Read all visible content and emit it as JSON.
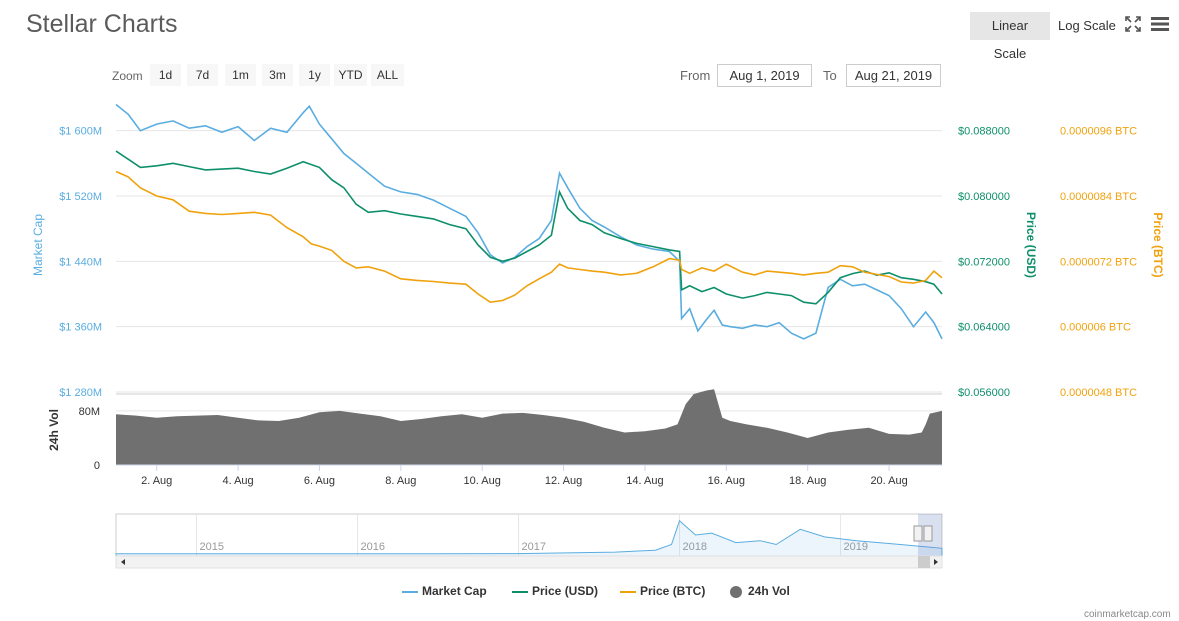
{
  "header": {
    "title": "Stellar Charts",
    "linear_scale": "Linear Scale",
    "log_scale": "Log Scale",
    "fullscreen_icon": "fullscreen-icon",
    "menu_icon": "hamburger-menu-icon"
  },
  "zoom": {
    "label": "Zoom",
    "buttons": [
      "1d",
      "7d",
      "1m",
      "3m",
      "1y",
      "YTD",
      "ALL"
    ]
  },
  "range": {
    "from_label": "From",
    "from_value": "Aug 1, 2019",
    "to_label": "To",
    "to_value": "Aug 21, 2019"
  },
  "colors": {
    "market_cap": "#5aade0",
    "price_usd": "#0d8f6a",
    "price_btc": "#f0a20e",
    "volume": "#707070"
  },
  "credit": "coinmarketcap.com",
  "chart_data": {
    "type": "line",
    "x_tick_labels": [
      "2. Aug",
      "4. Aug",
      "6. Aug",
      "8. Aug",
      "10. Aug",
      "12. Aug",
      "14. Aug",
      "16. Aug",
      "18. Aug",
      "20. Aug"
    ],
    "x_range_days": [
      1.0,
      21.3
    ],
    "axes": {
      "market_cap": {
        "label": "Market Cap",
        "ticks": [
          "$1 600M",
          "$1 520M",
          "$1 440M",
          "$1 360M",
          "$1 280M"
        ],
        "tick_values": [
          1600,
          1520,
          1440,
          1360,
          1280
        ],
        "range": [
          1280,
          1640
        ]
      },
      "price_usd": {
        "label": "Price (USD)",
        "ticks": [
          "$0.088000",
          "$0.080000",
          "$0.072000",
          "$0.064000",
          "$0.056000"
        ],
        "tick_values": [
          0.088,
          0.08,
          0.072,
          0.064,
          0.056
        ],
        "range": [
          0.056,
          0.092
        ]
      },
      "price_btc": {
        "label": "Price (BTC)",
        "ticks": [
          "0.0000096 BTC",
          "0.0000084 BTC",
          "0.0000072 BTC",
          "0.000006 BTC",
          "0.0000048 BTC"
        ],
        "tick_values": [
          9.6e-06,
          8.4e-06,
          7.2e-06,
          6e-06,
          4.8e-06
        ],
        "range": [
          4.8e-06,
          1.02e-05
        ]
      },
      "volume": {
        "label": "24h Vol",
        "ticks": [
          "80M",
          "0"
        ],
        "tick_values": [
          80,
          0
        ],
        "range": [
          0,
          105
        ]
      }
    },
    "series": [
      {
        "name": "Market Cap",
        "axis": "market_cap",
        "x": [
          1.0,
          1.3,
          1.6,
          2.0,
          2.4,
          2.8,
          3.2,
          3.6,
          4.0,
          4.4,
          4.8,
          5.2,
          5.6,
          5.75,
          6.0,
          6.3,
          6.6,
          6.9,
          7.2,
          7.6,
          8.0,
          8.4,
          8.8,
          9.2,
          9.6,
          9.9,
          10.2,
          10.5,
          10.8,
          11.1,
          11.4,
          11.7,
          11.9,
          12.1,
          12.4,
          12.7,
          13.0,
          13.4,
          13.8,
          14.2,
          14.6,
          14.85,
          14.9,
          15.1,
          15.3,
          15.5,
          15.7,
          15.9,
          16.1,
          16.4,
          16.7,
          17.0,
          17.3,
          17.6,
          17.9,
          18.2,
          18.5,
          18.8,
          19.1,
          19.4,
          19.7,
          20.0,
          20.3,
          20.6,
          20.9,
          21.1,
          21.3
        ],
        "values": [
          1632,
          1620,
          1600,
          1608,
          1612,
          1603,
          1606,
          1598,
          1605,
          1588,
          1603,
          1598,
          1622,
          1630,
          1608,
          1590,
          1572,
          1560,
          1548,
          1532,
          1525,
          1522,
          1515,
          1505,
          1495,
          1475,
          1448,
          1438,
          1445,
          1458,
          1468,
          1490,
          1548,
          1530,
          1505,
          1490,
          1482,
          1470,
          1460,
          1455,
          1452,
          1440,
          1370,
          1382,
          1355,
          1368,
          1380,
          1362,
          1360,
          1358,
          1362,
          1360,
          1365,
          1352,
          1345,
          1352,
          1408,
          1418,
          1410,
          1412,
          1405,
          1398,
          1382,
          1360,
          1378,
          1365,
          1345
        ]
      },
      {
        "name": "Price (USD)",
        "axis": "price_usd",
        "x": [
          1.0,
          1.3,
          1.6,
          2.0,
          2.4,
          2.8,
          3.2,
          3.6,
          4.0,
          4.4,
          4.8,
          5.2,
          5.6,
          6.0,
          6.3,
          6.6,
          6.9,
          7.2,
          7.6,
          8.0,
          8.4,
          8.8,
          9.2,
          9.6,
          9.9,
          10.2,
          10.5,
          10.8,
          11.1,
          11.4,
          11.7,
          11.9,
          12.1,
          12.4,
          12.7,
          13.0,
          13.4,
          13.8,
          14.2,
          14.6,
          14.85,
          14.9,
          15.1,
          15.4,
          15.7,
          16.0,
          16.4,
          16.7,
          17.0,
          17.3,
          17.6,
          17.9,
          18.2,
          18.5,
          18.8,
          19.1,
          19.4,
          19.7,
          20.0,
          20.3,
          20.6,
          20.9,
          21.1,
          21.3
        ],
        "values": [
          0.0855,
          0.0845,
          0.0835,
          0.0837,
          0.084,
          0.0836,
          0.0832,
          0.0833,
          0.0834,
          0.083,
          0.0827,
          0.0834,
          0.0842,
          0.0835,
          0.082,
          0.081,
          0.079,
          0.078,
          0.0782,
          0.0778,
          0.0775,
          0.0772,
          0.0765,
          0.076,
          0.074,
          0.0725,
          0.072,
          0.0724,
          0.0732,
          0.074,
          0.0752,
          0.0805,
          0.0785,
          0.077,
          0.0765,
          0.0755,
          0.0748,
          0.0742,
          0.0738,
          0.0734,
          0.0732,
          0.0685,
          0.069,
          0.0683,
          0.0688,
          0.068,
          0.0675,
          0.0678,
          0.0682,
          0.068,
          0.0678,
          0.067,
          0.0668,
          0.0682,
          0.07,
          0.0705,
          0.0708,
          0.0703,
          0.0706,
          0.07,
          0.0698,
          0.0695,
          0.0692,
          0.068
        ]
      },
      {
        "name": "Price (BTC)",
        "axis": "price_btc",
        "x": [
          1.0,
          1.3,
          1.6,
          2.0,
          2.4,
          2.8,
          3.2,
          3.6,
          4.0,
          4.4,
          4.8,
          5.2,
          5.6,
          5.8,
          6.0,
          6.3,
          6.6,
          6.9,
          7.2,
          7.6,
          8.0,
          8.4,
          8.8,
          9.2,
          9.6,
          9.9,
          10.2,
          10.5,
          10.8,
          11.1,
          11.4,
          11.7,
          11.9,
          12.1,
          12.4,
          12.7,
          13.0,
          13.4,
          13.8,
          14.2,
          14.6,
          14.85,
          14.9,
          15.1,
          15.4,
          15.7,
          16.0,
          16.4,
          16.7,
          17.0,
          17.3,
          17.6,
          17.9,
          18.2,
          18.5,
          18.8,
          19.1,
          19.4,
          19.7,
          20.0,
          20.3,
          20.6,
          20.9,
          21.1,
          21.3
        ],
        "values": [
          8.85e-06,
          8.75e-06,
          8.55e-06,
          8.4e-06,
          8.33e-06,
          8.12e-06,
          8.08e-06,
          8.06e-06,
          8.08e-06,
          8.1e-06,
          8.05e-06,
          7.82e-06,
          7.65e-06,
          7.52e-06,
          7.48e-06,
          7.4e-06,
          7.2e-06,
          7.08e-06,
          7.1e-06,
          7.02e-06,
          6.88e-06,
          6.85e-06,
          6.83e-06,
          6.8e-06,
          6.78e-06,
          6.6e-06,
          6.45e-06,
          6.48e-06,
          6.58e-06,
          6.75e-06,
          6.88e-06,
          7e-06,
          7.15e-06,
          7.08e-06,
          7.05e-06,
          7.02e-06,
          7e-06,
          6.95e-06,
          6.98e-06,
          7.1e-06,
          7.25e-06,
          7.22e-06,
          7.05e-06,
          6.98e-06,
          7.08e-06,
          7.02e-06,
          7.15e-06,
          7e-06,
          6.95e-06,
          7.02e-06,
          7e-06,
          6.98e-06,
          6.95e-06,
          6.98e-06,
          7e-06,
          7.12e-06,
          7.1e-06,
          7e-06,
          6.96e-06,
          6.92e-06,
          6.82e-06,
          6.8e-06,
          6.85e-06,
          7.02e-06,
          6.9e-06
        ]
      },
      {
        "name": "24h Vol",
        "axis": "volume",
        "type": "area",
        "x": [
          1.0,
          1.5,
          2.0,
          2.5,
          3.0,
          3.5,
          4.0,
          4.5,
          5.0,
          5.5,
          6.0,
          6.5,
          7.0,
          7.5,
          8.0,
          8.5,
          9.0,
          9.5,
          10.0,
          10.5,
          11.0,
          11.5,
          12.0,
          12.5,
          13.0,
          13.5,
          14.0,
          14.5,
          14.8,
          15.0,
          15.2,
          15.5,
          15.7,
          15.9,
          16.1,
          16.5,
          17.0,
          17.5,
          18.0,
          18.5,
          19.0,
          19.5,
          20.0,
          20.5,
          20.8,
          20.9,
          21.0,
          21.3
        ],
        "values": [
          75,
          73,
          70,
          72,
          73,
          74,
          70,
          66,
          65,
          70,
          78,
          80,
          76,
          72,
          65,
          68,
          72,
          75,
          70,
          76,
          77,
          74,
          70,
          64,
          55,
          48,
          50,
          54,
          60,
          90,
          105,
          110,
          112,
          70,
          65,
          60,
          55,
          48,
          40,
          48,
          52,
          55,
          46,
          45,
          48,
          60,
          76,
          80
        ]
      }
    ],
    "navigator": {
      "year_labels": [
        "2015",
        "2016",
        "2017",
        "2018",
        "2019"
      ],
      "x": [
        2014.5,
        2015.0,
        2015.5,
        2016.0,
        2016.5,
        2017.0,
        2017.3,
        2017.6,
        2017.85,
        2017.95,
        2018.0,
        2018.1,
        2018.2,
        2018.35,
        2018.5,
        2018.6,
        2018.75,
        2018.9,
        2019.1,
        2019.3,
        2019.5,
        2019.63
      ],
      "values": [
        0.3,
        0.3,
        0.25,
        0.25,
        0.3,
        0.4,
        1.2,
        2.0,
        4.0,
        10.0,
        35.0,
        20.0,
        22.0,
        12.0,
        14.0,
        10.0,
        26.0,
        18.0,
        14.0,
        11.0,
        8.0,
        6.0
      ]
    },
    "legend": [
      "Market Cap",
      "Price (USD)",
      "Price (BTC)",
      "24h Vol"
    ],
    "legend_position": "bottom",
    "grid": true
  }
}
